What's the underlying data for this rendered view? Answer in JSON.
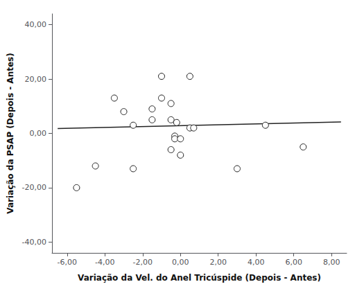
{
  "chart_data": {
    "type": "scatter",
    "xlabel": "Variação da Vel. do Anel Tricúspide (Depois - Antes)",
    "ylabel": "Variação da PSAP (Depois - Antes)",
    "series": [
      {
        "type": "scatter",
        "marker": "circle",
        "color": "#222222",
        "x": [
          -5.5,
          -4.5,
          -3.5,
          -3.0,
          -2.5,
          -2.5,
          -1.5,
          -1.5,
          -1.0,
          -1.0,
          -0.5,
          -0.5,
          -0.5,
          -0.3,
          -0.3,
          -0.2,
          0.0,
          0.0,
          0.5,
          0.5,
          0.7,
          3.0,
          4.5,
          6.5
        ],
        "values": [
          -20.0,
          -12.0,
          13.0,
          8.0,
          3.0,
          -13.0,
          9.0,
          5.0,
          21.0,
          13.0,
          11.0,
          5.0,
          -6.0,
          -1.0,
          -2.0,
          4.0,
          -2.0,
          -8.0,
          2.0,
          21.0,
          2.0,
          -13.0,
          3.0,
          -5.0
        ]
      },
      {
        "type": "line",
        "line_style": "solid",
        "color": "#222222",
        "x": [
          -6.5,
          8.5
        ],
        "values": [
          1.8,
          4.2
        ]
      }
    ],
    "xlim": [
      -6.8,
      8.8
    ],
    "ylim": [
      -44,
      44
    ],
    "xticks": [
      {
        "value": -6,
        "label": "-6,00"
      },
      {
        "value": -4,
        "label": "-4,00"
      },
      {
        "value": -2,
        "label": "-2,00"
      },
      {
        "value": 0,
        "label": "0,00"
      },
      {
        "value": 2,
        "label": "2,00"
      },
      {
        "value": 4,
        "label": "4,00"
      },
      {
        "value": 6,
        "label": "6,00"
      },
      {
        "value": 8,
        "label": "8,00"
      }
    ],
    "yticks": [
      {
        "value": -40,
        "label": "-40,00"
      },
      {
        "value": -20,
        "label": "-20,00"
      },
      {
        "value": 0,
        "label": "0,00"
      },
      {
        "value": 20,
        "label": "20,00"
      },
      {
        "value": 40,
        "label": "40,00"
      }
    ],
    "grid": false
  }
}
